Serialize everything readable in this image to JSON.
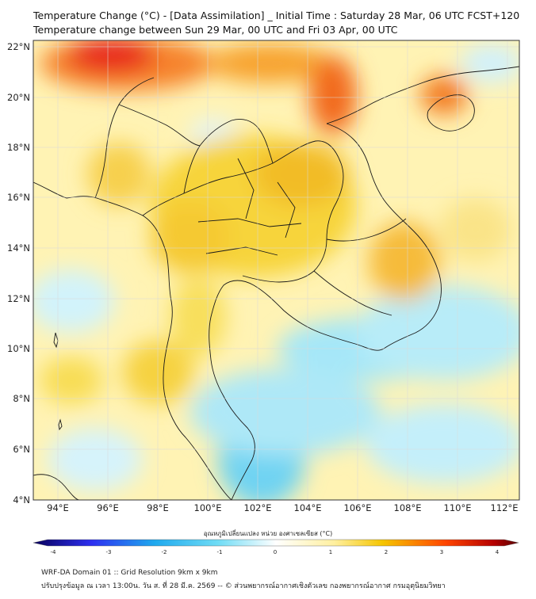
{
  "title_line1": "Temperature Change (°C) - [Data Assimilation] _ Initial Time : Saturday 28 Mar, 06 UTC FCST+120",
  "title_line2": "Temperature change between Sun 29 Mar, 00 UTC and Fri 03 Apr, 00 UTC",
  "lat_labels": [
    "22°N",
    "20°N",
    "18°N",
    "16°N",
    "14°N",
    "12°N",
    "10°N",
    "8°N",
    "6°N",
    "4°N"
  ],
  "lon_labels": [
    "94°E",
    "96°E",
    "98°E",
    "100°E",
    "102°E",
    "104°E",
    "106°E",
    "108°E",
    "110°E",
    "112°E"
  ],
  "colorbar": {
    "label": "อุณหภูมิเปลี่ยนแปลง หน่วย องศาเซลเซียส (°C)",
    "ticks": [
      "-4",
      "-3",
      "-2",
      "-1",
      "0",
      "1",
      "2",
      "3",
      "4"
    ],
    "colors": [
      "#08005c",
      "#2d2ff0",
      "#1fa9ee",
      "#6fdcf5",
      "#ffffff",
      "#fff0a0",
      "#f5c500",
      "#ff4500",
      "#b40000",
      "#5a0000"
    ]
  },
  "footer_line1": "WRF-DA Domain 01 :: Grid Resolution 9km x 9km",
  "footer_line2": "ปรับปรุงข้อมูล ณ เวลา 13:00น. วัน ส. ที่ 28 มี.ค. 2569 -- © ส่วนพยากรณ์อากาศเชิงตัวเลข กองพยากรณ์อากาศ กรมอุตุนิยมวิทยา"
}
